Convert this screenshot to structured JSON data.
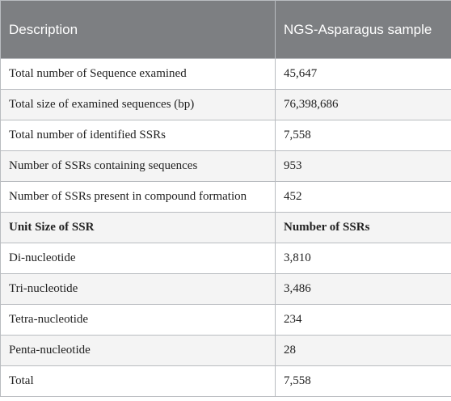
{
  "header": {
    "col1": "Description",
    "col2": "NGS-Asparagus sample"
  },
  "rows": [
    {
      "label": "Total number of Sequence examined",
      "value": "45,647"
    },
    {
      "label": "Total size of examined sequences (bp)",
      "value": "76,398,686"
    },
    {
      "label": "Total number of identified SSRs",
      "value": "7,558"
    },
    {
      "label": "Number of SSRs containing sequences",
      "value": "953"
    },
    {
      "label": "Number of SSRs present in compound formation",
      "value": "452"
    },
    {
      "label": "Unit Size of SSR",
      "value": "Number of SSRs"
    },
    {
      "label": "Di-nucleotide",
      "value": "3,810"
    },
    {
      "label": "Tri-nucleotide",
      "value": "3,486"
    },
    {
      "label": "Tetra-nucleotide",
      "value": "234"
    },
    {
      "label": "Penta-nucleotide",
      "value": "28"
    },
    {
      "label": "Total",
      "value": "7,558"
    }
  ]
}
